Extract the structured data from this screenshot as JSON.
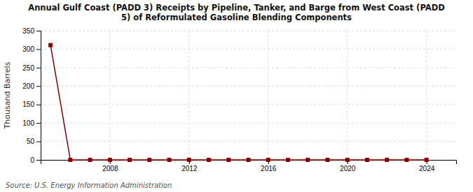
{
  "chart_data": {
    "type": "line",
    "title": "Annual Gulf Coast (PADD 3) Receipts by Pipeline, Tanker, and Barge from West Coast (PADD\n5) of Reformulated Gasoline Blending Components",
    "y_label": "Thousand Barrels",
    "source": "Source: U.S. Energy Information Administration",
    "x": [
      2005,
      2006,
      2007,
      2008,
      2009,
      2010,
      2011,
      2012,
      2013,
      2014,
      2015,
      2016,
      2017,
      2018,
      2019,
      2020,
      2021,
      2022,
      2023,
      2024
    ],
    "values": [
      311,
      0,
      0,
      0,
      0,
      0,
      0,
      0,
      0,
      0,
      0,
      0,
      0,
      0,
      0,
      0,
      0,
      0,
      0,
      0
    ],
    "color": "#8b0000",
    "marker": "square",
    "xlim": [
      2004.5,
      2025.5
    ],
    "xticks": [
      2008,
      2012,
      2016,
      2020,
      2024
    ],
    "ylim": [
      0,
      350
    ],
    "yticks": [
      0,
      50,
      100,
      150,
      200,
      250,
      300,
      350
    ],
    "grid": true
  }
}
